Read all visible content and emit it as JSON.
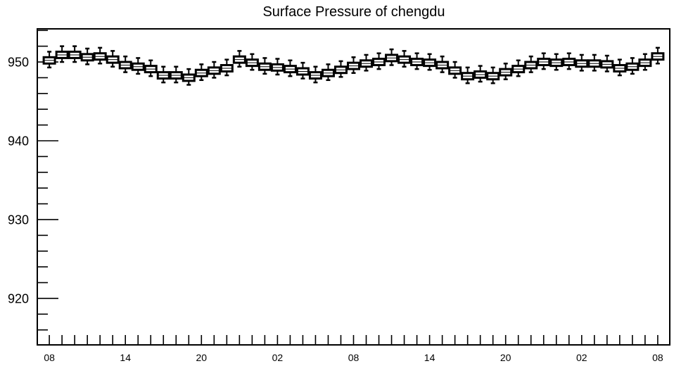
{
  "chart_data": {
    "type": "box",
    "title": "Surface Pressure of chengdu",
    "xlabel": "",
    "ylabel": "",
    "x": [
      8,
      9,
      10,
      11,
      12,
      13,
      14,
      15,
      16,
      17,
      18,
      19,
      20,
      21,
      22,
      23,
      0,
      1,
      2,
      3,
      4,
      5,
      6,
      7,
      8,
      9,
      10,
      11,
      12,
      13,
      14,
      15,
      16,
      17,
      18,
      19,
      20,
      21,
      22,
      23,
      0,
      1,
      2,
      3,
      4,
      5,
      6,
      7,
      8
    ],
    "xticks": [
      "08",
      "14",
      "20",
      "02",
      "08",
      "14",
      "20",
      "02",
      "08"
    ],
    "yticks": [
      920,
      930,
      940,
      950
    ],
    "ylim": [
      914.1,
      954.2
    ],
    "grid": false,
    "legend": false,
    "median": [
      950.2,
      950.9,
      950.9,
      950.6,
      950.7,
      950.3,
      949.6,
      949.4,
      949.1,
      948.3,
      948.3,
      948.0,
      948.6,
      948.9,
      949.2,
      950.3,
      949.9,
      949.4,
      949.3,
      949.1,
      948.8,
      948.3,
      948.6,
      949.0,
      949.5,
      949.8,
      950.0,
      950.5,
      950.3,
      950.0,
      949.9,
      949.6,
      948.9,
      948.2,
      948.4,
      948.2,
      948.7,
      949.1,
      949.6,
      950.0,
      949.9,
      950.0,
      949.8,
      949.8,
      949.7,
      949.2,
      949.4,
      949.9,
      950.7
    ],
    "q1": [
      949.8,
      950.5,
      950.5,
      950.2,
      950.3,
      949.9,
      949.2,
      949.0,
      948.7,
      947.9,
      947.9,
      947.6,
      948.2,
      948.5,
      948.8,
      949.9,
      949.5,
      949.0,
      948.9,
      948.7,
      948.4,
      947.9,
      948.2,
      948.6,
      949.1,
      949.4,
      949.6,
      950.1,
      949.9,
      949.6,
      949.5,
      949.2,
      948.5,
      947.8,
      948.0,
      947.8,
      948.3,
      948.7,
      949.2,
      949.6,
      949.5,
      949.6,
      949.4,
      949.4,
      949.3,
      948.8,
      949.0,
      949.5,
      950.3
    ],
    "q3": [
      950.6,
      951.3,
      951.3,
      951.0,
      951.1,
      950.7,
      950.0,
      949.8,
      949.5,
      948.7,
      948.7,
      948.4,
      949.0,
      949.3,
      949.6,
      950.7,
      950.3,
      949.8,
      949.7,
      949.5,
      949.2,
      948.7,
      949.0,
      949.4,
      949.9,
      950.2,
      950.4,
      950.9,
      950.7,
      950.4,
      950.3,
      950.0,
      949.3,
      948.6,
      948.8,
      948.6,
      949.1,
      949.5,
      950.0,
      950.4,
      950.3,
      950.4,
      950.2,
      950.2,
      950.1,
      949.6,
      949.8,
      950.3,
      951.1
    ],
    "min": [
      949.3,
      950.0,
      950.0,
      949.7,
      949.8,
      949.4,
      948.7,
      948.5,
      948.2,
      947.4,
      947.4,
      947.1,
      947.7,
      948.0,
      948.3,
      949.4,
      949.0,
      948.5,
      948.4,
      948.2,
      947.9,
      947.4,
      947.7,
      948.1,
      948.6,
      948.9,
      949.1,
      949.6,
      949.4,
      949.1,
      949.0,
      948.7,
      948.0,
      947.3,
      947.5,
      947.3,
      947.8,
      948.2,
      948.7,
      949.1,
      949.0,
      949.1,
      948.9,
      948.9,
      948.8,
      948.3,
      948.5,
      949.0,
      949.8
    ],
    "max": [
      951.3,
      952.0,
      952.0,
      951.7,
      951.8,
      951.4,
      950.7,
      950.5,
      950.2,
      949.4,
      949.4,
      949.1,
      949.7,
      950.0,
      950.3,
      951.4,
      951.0,
      950.5,
      950.4,
      950.2,
      949.9,
      949.4,
      949.7,
      950.1,
      950.6,
      950.9,
      951.1,
      951.6,
      951.4,
      951.1,
      951.0,
      950.7,
      950.0,
      949.3,
      949.5,
      949.3,
      949.8,
      950.2,
      950.7,
      951.1,
      951.0,
      951.1,
      950.9,
      950.9,
      950.8,
      950.3,
      950.5,
      951.0,
      951.8
    ],
    "colors": {
      "background": "#ffffff",
      "frame": "#000000",
      "box_line": "#000000",
      "box_fill": "#ffffff"
    }
  }
}
